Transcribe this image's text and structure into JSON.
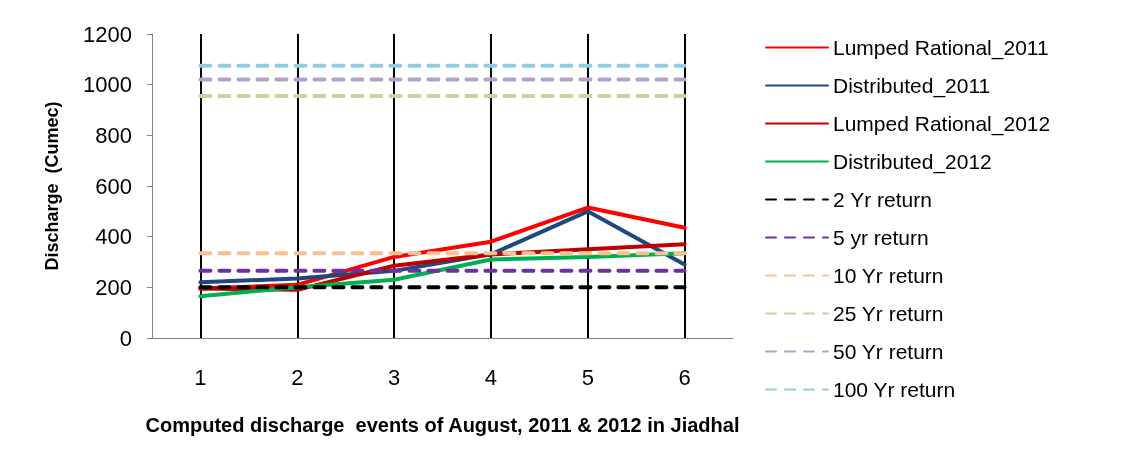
{
  "chart_data": {
    "type": "line",
    "xlabel": "Computed discharge  events of August, 2011 & 2012 in Jiadhal",
    "ylabel": "Discharge  (Cumec)",
    "categories": [
      "1",
      "2",
      "3",
      "4",
      "5",
      "6"
    ],
    "ylim": [
      0,
      1200
    ],
    "yticks": [
      0,
      200,
      400,
      600,
      800,
      1000,
      1200
    ],
    "grid": "x",
    "legend": "right",
    "marker": "none",
    "line_style": "solid",
    "series": [
      {
        "name": "Lumped Rational_2011",
        "color": "#ff0000",
        "values": [
          195,
          210,
          320,
          380,
          515,
          435
        ]
      },
      {
        "name": "Distributed_2011",
        "color": "#1f497d",
        "values": [
          220,
          235,
          265,
          330,
          500,
          290
        ]
      },
      {
        "name": "Lumped Rational_2012",
        "color": "#c00000",
        "values": [
          195,
          190,
          285,
          330,
          350,
          370
        ]
      },
      {
        "name": "Distributed_2012",
        "color": "#00b050",
        "values": [
          165,
          200,
          230,
          310,
          320,
          335
        ]
      },
      {
        "name": "2 Yr return",
        "color": "#000000",
        "line_style": "dashed",
        "values": [
          200,
          200,
          200,
          200,
          200,
          200
        ]
      },
      {
        "name": "5 yr return",
        "color": "#7030a0",
        "line_style": "dashed",
        "values": [
          265,
          265,
          265,
          265,
          265,
          265
        ]
      },
      {
        "name": "10 Yr return",
        "color": "#fac090",
        "line_style": "dashed",
        "values": [
          335,
          335,
          335,
          335,
          335,
          335
        ]
      },
      {
        "name": "25 Yr return",
        "color": "#c3d69b",
        "line_style": "dashed",
        "values": [
          955,
          955,
          955,
          955,
          955,
          955
        ]
      },
      {
        "name": "50 Yr return",
        "color": "#b3a2c7",
        "line_style": "dashed",
        "values": [
          1020,
          1020,
          1020,
          1020,
          1020,
          1020
        ]
      },
      {
        "name": "100 Yr return",
        "color": "#93cddd",
        "line_style": "dashed",
        "values": [
          1075,
          1075,
          1075,
          1075,
          1075,
          1075
        ]
      }
    ]
  }
}
